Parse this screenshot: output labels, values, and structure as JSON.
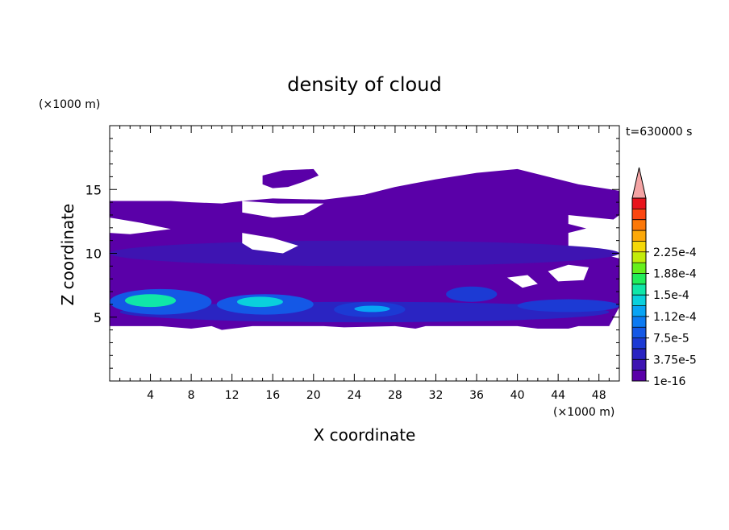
{
  "chart_data": {
    "type": "heatmap",
    "title": "density of cloud",
    "time_label": "t=630000 s",
    "xlabel": "X coordinate",
    "ylabel": "Z coordinate",
    "x_unit_label": "(×1000 m)",
    "y_unit_label": "(×1000 m)",
    "xlim": [
      0,
      50
    ],
    "ylim": [
      0,
      20
    ],
    "x_ticks": [
      "4",
      "8",
      "12",
      "16",
      "20",
      "24",
      "28",
      "32",
      "36",
      "40",
      "44",
      "48"
    ],
    "y_ticks": [
      "5",
      "10",
      "15"
    ],
    "colorbar": {
      "labels": [
        "1e-16",
        "3.75e-5",
        "7.5e-5",
        "1.12e-4",
        "1.5e-4",
        "1.88e-4",
        "2.25e-4"
      ],
      "levels": [
        1e-16,
        3.75e-05,
        7.5e-05,
        0.000112,
        0.00015,
        0.000188,
        0.000225
      ],
      "colors": [
        "#5a00a8",
        "#3e14b2",
        "#2a24c2",
        "#1c3ad4",
        "#1458e6",
        "#0c7af2",
        "#08a4f4",
        "#0ad0dc",
        "#10e6a8",
        "#22ee5a",
        "#66f01c",
        "#c2ec0a",
        "#f4d808",
        "#fca808",
        "#fc7808",
        "#fc4610",
        "#e8141c"
      ],
      "overflow_color": "#f4a4a4"
    },
    "cloud_layers": [
      {
        "x_range": [
          0,
          50
        ],
        "z_range": [
          9,
          11
        ],
        "level": 1
      },
      {
        "x_range": [
          1,
          49
        ],
        "z_range": [
          4.6,
          6.2
        ],
        "level": 2
      },
      {
        "x_range": [
          0,
          10
        ],
        "z_range": [
          5.2,
          7.2
        ],
        "level": 4
      },
      {
        "x_range": [
          10.5,
          20
        ],
        "z_range": [
          5.2,
          6.8
        ],
        "level": 4
      },
      {
        "x_range": [
          22,
          29
        ],
        "z_range": [
          5.0,
          6.2
        ],
        "level": 3
      },
      {
        "x_range": [
          1.5,
          6.5
        ],
        "z_range": [
          5.8,
          6.8
        ],
        "level": 8
      },
      {
        "x_range": [
          12.5,
          17
        ],
        "z_range": [
          5.8,
          6.6
        ],
        "level": 7
      },
      {
        "x_range": [
          24,
          27.5
        ],
        "z_range": [
          5.4,
          5.9
        ],
        "level": 6
      },
      {
        "x_range": [
          33,
          38
        ],
        "z_range": [
          6.2,
          7.4
        ],
        "level": 3
      },
      {
        "x_range": [
          40,
          50
        ],
        "z_range": [
          5.4,
          6.4
        ],
        "level": 3
      }
    ]
  }
}
